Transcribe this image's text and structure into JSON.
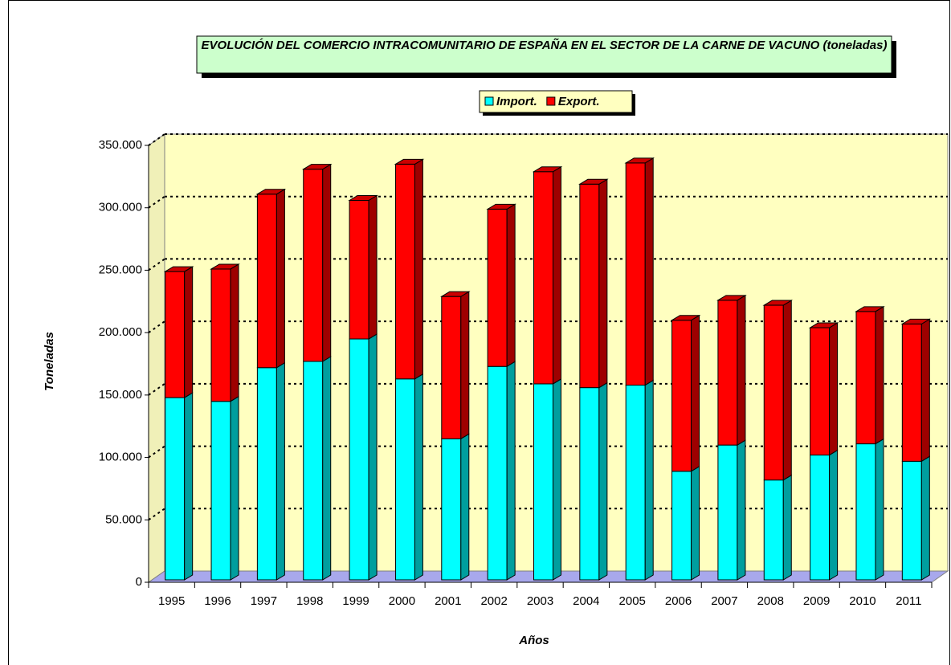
{
  "chart_data": {
    "type": "bar3d_stacked",
    "title": "EVOLUCIÓN DEL COMERCIO INTRACOMUNITARIO DE ESPAÑA EN EL SECTOR DE LA CARNE DE VACUNO (toneladas)",
    "x_label": "Años",
    "y_label": "Toneladas",
    "categories": [
      "1995",
      "1996",
      "1997",
      "1998",
      "1999",
      "2000",
      "2001",
      "2002",
      "2003",
      "2004",
      "2005",
      "2006",
      "2007",
      "2008",
      "2009",
      "2010",
      "2011"
    ],
    "series": [
      {
        "name": "Import.",
        "color": "#00ffff",
        "values": [
          146000,
          143000,
          170000,
          175000,
          193000,
          161000,
          113000,
          171000,
          157000,
          154000,
          156000,
          87000,
          108000,
          80000,
          100000,
          109000,
          95000
        ]
      },
      {
        "name": "Export.",
        "color": "#ff0000",
        "values": [
          101000,
          106000,
          139000,
          154000,
          111000,
          172000,
          114000,
          126000,
          170000,
          163000,
          178000,
          121000,
          116000,
          140000,
          102000,
          106000,
          110000
        ]
      }
    ],
    "ylim": [
      0,
      350000
    ],
    "yticks": [
      0,
      {
        "value": 50000,
        "label": "50.000"
      },
      {
        "value": 100000,
        "label": "100.000"
      },
      {
        "value": 150000,
        "label": "150.000"
      },
      {
        "value": 200000,
        "label": "200.000"
      },
      {
        "value": 250000,
        "label": "250.000"
      },
      {
        "value": 300000,
        "label": "300.000"
      },
      {
        "value": 350000,
        "label": "350.000"
      }
    ],
    "grid": true,
    "legend": "top"
  }
}
